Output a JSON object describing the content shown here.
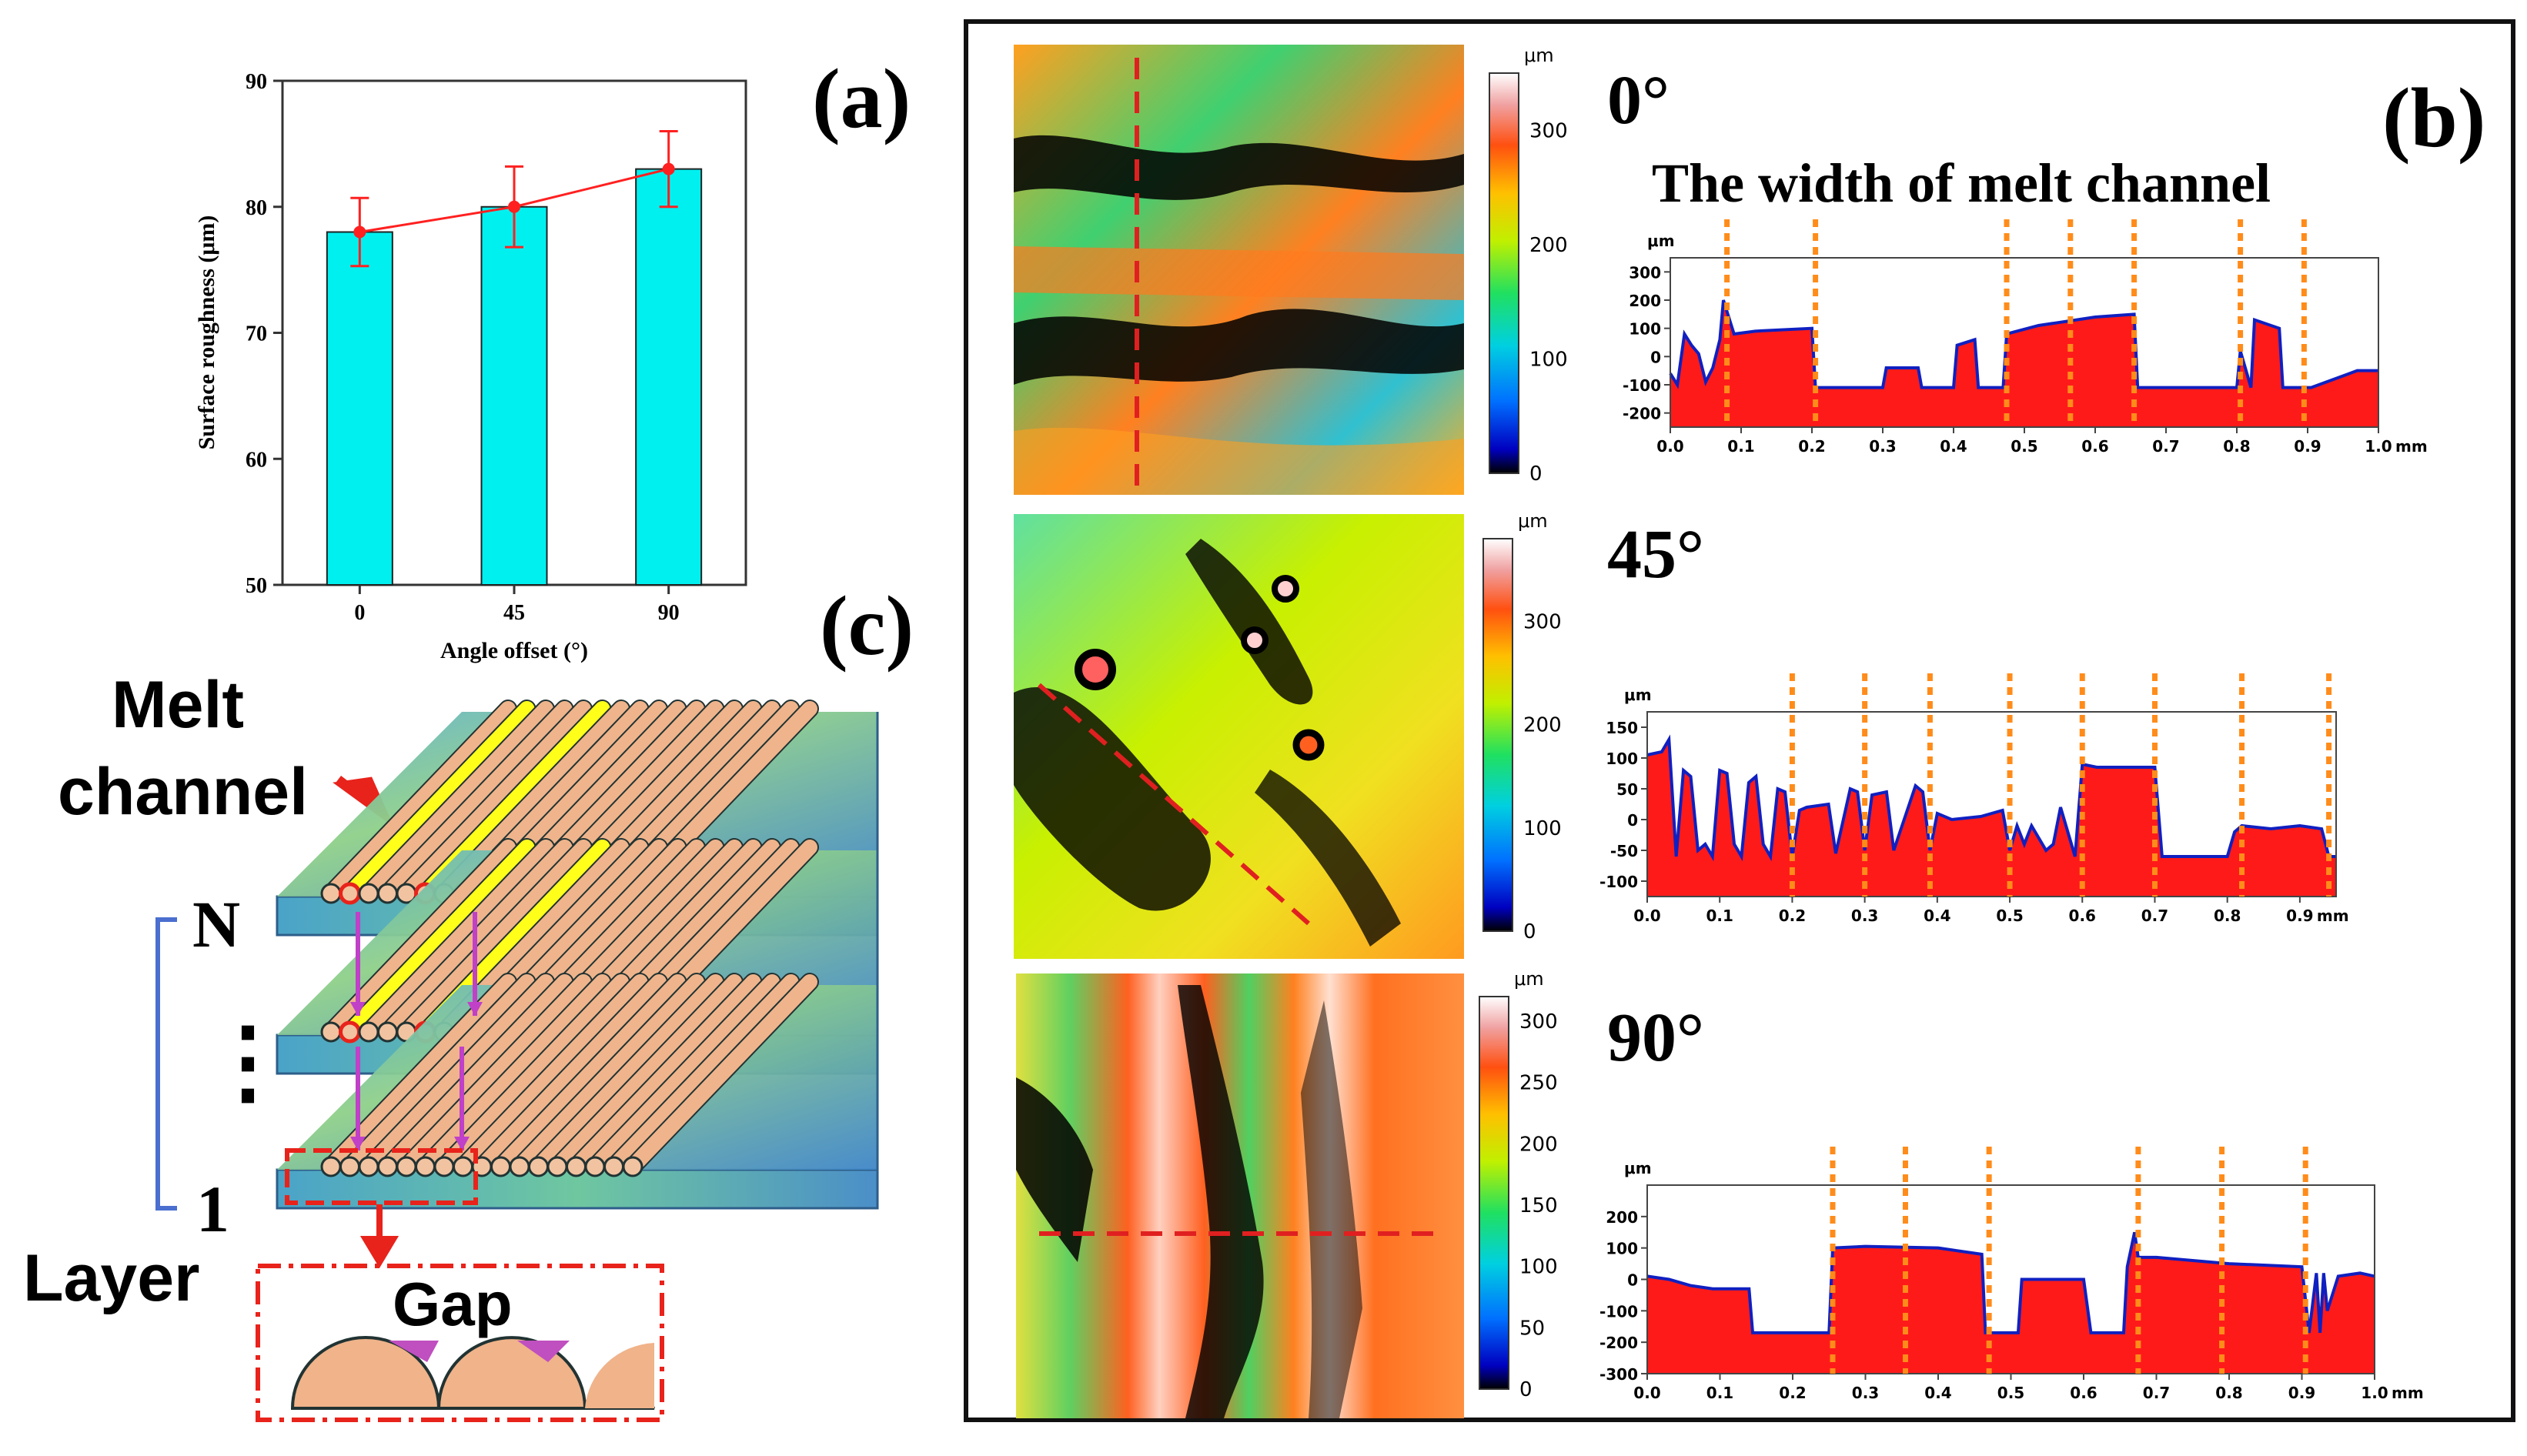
{
  "panel_labels": {
    "a": "(a)",
    "b": "(b)",
    "c": "(c)"
  },
  "colors": {
    "bar": "#00f0f0",
    "line": "#ff2020",
    "profile_fill": "#ff1a1a",
    "profile_edge": "#1020c0",
    "guide": "#ff8c1a"
  },
  "chart_data": [
    {
      "id": "a",
      "type": "bar",
      "title": "",
      "categories": [
        "0",
        "45",
        "90"
      ],
      "values": [
        78,
        80,
        83
      ],
      "errors": [
        2.7,
        3.2,
        3.0
      ],
      "overlay_line": [
        78,
        80,
        83
      ],
      "xlabel": "Angle offset (°)",
      "ylabel": "Surface roughness (μm)",
      "ylim": [
        50,
        90
      ],
      "yticks": [
        "50",
        "60",
        "70",
        "80",
        "90"
      ]
    },
    {
      "id": "b0",
      "type": "area",
      "title": "0°",
      "subtitle": "The width of melt channel",
      "unit_y": "μm",
      "unit_x": "mm",
      "xlim": [
        0,
        1.0
      ],
      "ylim": [
        -250,
        350
      ],
      "yticks": [
        "300",
        "200",
        "100",
        "0",
        "-100",
        "-200"
      ],
      "xticks": [
        "0.0",
        "0.1",
        "0.2",
        "0.3",
        "0.4",
        "0.5",
        "0.6",
        "0.7",
        "0.8",
        "0.9",
        "1.0"
      ],
      "guides": [
        0.08,
        0.205,
        0.475,
        0.565,
        0.655,
        0.805,
        0.895
      ],
      "colorbar_ticks": [
        "0",
        "100",
        "200",
        "300"
      ],
      "x": [
        0,
        0.01,
        0.02,
        0.03,
        0.04,
        0.05,
        0.06,
        0.07,
        0.075,
        0.08,
        0.09,
        0.12,
        0.2,
        0.205,
        0.3,
        0.305,
        0.35,
        0.355,
        0.4,
        0.405,
        0.43,
        0.435,
        0.47,
        0.475,
        0.52,
        0.6,
        0.655,
        0.66,
        0.8,
        0.805,
        0.82,
        0.825,
        0.86,
        0.865,
        0.9,
        0.905,
        0.97,
        1.0
      ],
      "y": [
        -60,
        -100,
        80,
        40,
        10,
        -90,
        -40,
        60,
        200,
        160,
        80,
        90,
        100,
        -110,
        -110,
        -40,
        -40,
        -110,
        -110,
        40,
        60,
        -110,
        -110,
        80,
        110,
        140,
        150,
        -110,
        -110,
        20,
        -110,
        130,
        100,
        -110,
        -110,
        -110,
        -50,
        -50
      ]
    },
    {
      "id": "b45",
      "type": "area",
      "title": "45°",
      "unit_y": "μm",
      "unit_x": "mm",
      "xlim": [
        0,
        0.95
      ],
      "ylim": [
        -125,
        175
      ],
      "yticks": [
        "150",
        "100",
        "50",
        "0",
        "-50",
        "-100"
      ],
      "xticks": [
        "0.0",
        "0.1",
        "0.2",
        "0.3",
        "0.4",
        "0.5",
        "0.6",
        "0.7",
        "0.8",
        "0.9"
      ],
      "guides": [
        0.2,
        0.3,
        0.39,
        0.5,
        0.6,
        0.7,
        0.82,
        0.94
      ],
      "colorbar_ticks": [
        "0",
        "100",
        "200",
        "300"
      ],
      "x": [
        0,
        0.02,
        0.03,
        0.04,
        0.05,
        0.06,
        0.07,
        0.08,
        0.09,
        0.1,
        0.11,
        0.12,
        0.13,
        0.14,
        0.15,
        0.16,
        0.17,
        0.18,
        0.19,
        0.2,
        0.21,
        0.22,
        0.25,
        0.26,
        0.28,
        0.29,
        0.3,
        0.31,
        0.33,
        0.34,
        0.37,
        0.38,
        0.39,
        0.4,
        0.42,
        0.46,
        0.49,
        0.5,
        0.51,
        0.52,
        0.53,
        0.55,
        0.56,
        0.57,
        0.58,
        0.59,
        0.6,
        0.62,
        0.66,
        0.7,
        0.71,
        0.8,
        0.81,
        0.82,
        0.86,
        0.9,
        0.93,
        0.94,
        0.95
      ],
      "y": [
        105,
        110,
        130,
        -60,
        80,
        70,
        -50,
        -40,
        -60,
        80,
        75,
        -40,
        -60,
        60,
        70,
        -40,
        -60,
        50,
        45,
        -60,
        15,
        20,
        25,
        -55,
        50,
        45,
        -50,
        40,
        45,
        -50,
        55,
        45,
        -50,
        10,
        0,
        5,
        15,
        -50,
        -10,
        -40,
        -10,
        -50,
        -40,
        20,
        -20,
        -60,
        90,
        85,
        85,
        85,
        -60,
        -60,
        -20,
        -10,
        -15,
        -10,
        -15,
        -60,
        -60
      ]
    },
    {
      "id": "b90",
      "type": "area",
      "title": "90°",
      "unit_y": "μm",
      "unit_x": "mm",
      "xlim": [
        0,
        1.0
      ],
      "ylim": [
        -300,
        300
      ],
      "yticks": [
        "200",
        "100",
        "0",
        "-100",
        "-200",
        "-300"
      ],
      "xticks": [
        "0.0",
        "0.1",
        "0.2",
        "0.3",
        "0.4",
        "0.5",
        "0.6",
        "0.7",
        "0.8",
        "0.9",
        "1.0"
      ],
      "guides": [
        0.255,
        0.355,
        0.47,
        0.675,
        0.79,
        0.905
      ],
      "colorbar_ticks": [
        "0",
        "50",
        "100",
        "150",
        "200",
        "250",
        "300"
      ],
      "x": [
        0,
        0.03,
        0.06,
        0.09,
        0.14,
        0.145,
        0.25,
        0.255,
        0.3,
        0.4,
        0.46,
        0.465,
        0.51,
        0.515,
        0.6,
        0.61,
        0.655,
        0.66,
        0.67,
        0.675,
        0.7,
        0.8,
        0.9,
        0.91,
        0.92,
        0.925,
        0.93,
        0.935,
        0.95,
        0.98,
        1.0
      ],
      "y": [
        10,
        0,
        -20,
        -30,
        -30,
        -170,
        -170,
        100,
        105,
        100,
        80,
        -170,
        -170,
        0,
        0,
        -170,
        -170,
        40,
        150,
        70,
        70,
        50,
        40,
        -170,
        20,
        -170,
        20,
        -100,
        10,
        20,
        10
      ]
    }
  ],
  "schematic": {
    "melt_channel_label": "Melt\nchannel",
    "melt": "Melt",
    "channel": "channel",
    "layer_n": "N",
    "layer_1": "1",
    "dots": "⋮",
    "layer_label": "Layer",
    "gap_label": "Gap"
  }
}
